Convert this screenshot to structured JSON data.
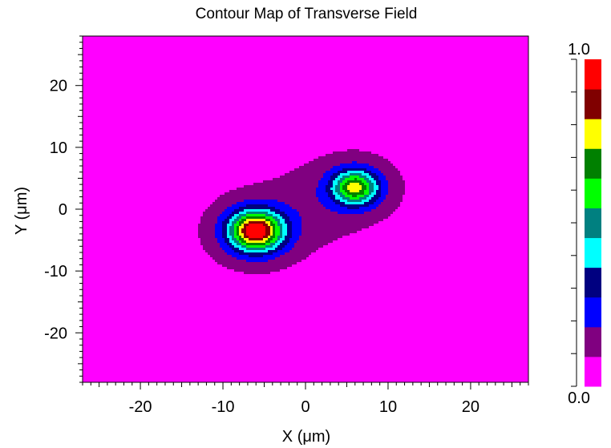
{
  "chart_data": {
    "type": "heatmap",
    "title": "Contour Map of Transverse Field",
    "xlabel": "X (μm)",
    "ylabel": "Y (μm)",
    "xlim": [
      -27,
      27
    ],
    "ylim": [
      -28,
      28
    ],
    "x_ticks": [
      -20,
      -10,
      0,
      10,
      20
    ],
    "x_tick_labels": [
      "-20",
      "-10",
      "0",
      "10",
      "20"
    ],
    "y_ticks": [
      20,
      10,
      0,
      -10,
      -20
    ],
    "y_tick_labels": [
      "20",
      "10",
      "0",
      "-10",
      "-20"
    ],
    "colorbar": {
      "min": 0.0,
      "max": 1.0,
      "min_label": "0.0",
      "max_label": "1.0",
      "levels": 11,
      "colors": [
        "#ff00ff",
        "#800080",
        "#0000ff",
        "#000080",
        "#00ffff",
        "#008080",
        "#00ff00",
        "#008000",
        "#ffff00",
        "#800000",
        "#ff0000"
      ]
    },
    "field_peaks": [
      {
        "x": -6,
        "y": -3.5,
        "relative_amplitude": 0.88
      },
      {
        "x": 6,
        "y": 3.5,
        "relative_amplitude": 0.62
      }
    ],
    "grid": false
  }
}
